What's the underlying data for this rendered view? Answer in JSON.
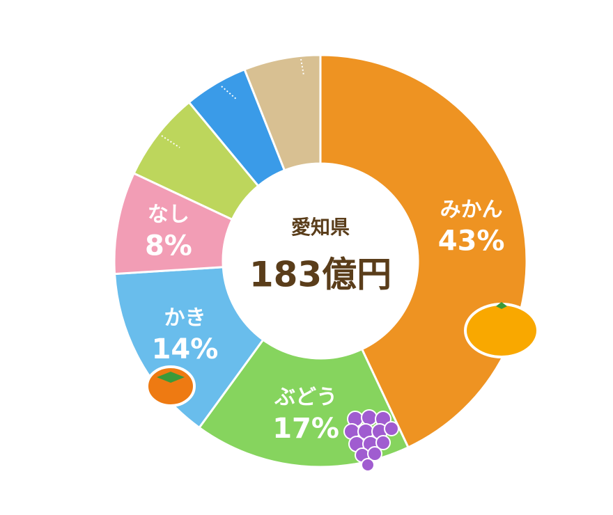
{
  "chart_data": {
    "type": "donut",
    "center_title": "愛知県",
    "center_text": "183億円",
    "categories": [
      "みかん",
      "ぶどう",
      "かき",
      "なし",
      null,
      null,
      null
    ],
    "values": [
      43,
      17,
      14,
      8,
      7,
      5,
      6
    ],
    "value_labels": [
      "43%",
      "17%",
      "14%",
      "8%",
      null,
      null,
      null
    ],
    "colors": [
      "#ee9322",
      "#86d45e",
      "#69bdec",
      "#f29db5",
      "#bdd65c",
      "#3a9be8",
      "#d8c092"
    ]
  }
}
